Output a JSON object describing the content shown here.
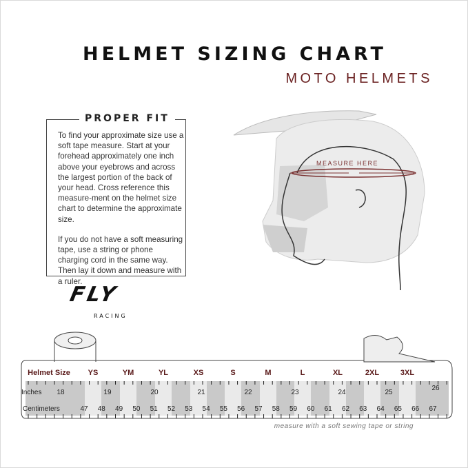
{
  "header": {
    "title": "HELMET SIZING CHART",
    "subtitle": "MOTO HELMETS"
  },
  "proper_fit": {
    "title": "PROPER FIT",
    "paragraphs": [
      "To find your approximate size use a soft tape measure. Start at your forehead approximately one inch above your eyebrows and across the largest portion of the back of your head. Cross reference this measure-ment on the helmet size chart to determine the approximate size.",
      "If you do not have a soft measuring tape, use a string or phone charging cord in the same way. Then lay it down and measure with a ruler."
    ]
  },
  "illustration": {
    "measure_label": "MEASURE HERE",
    "accent": "#7a3030"
  },
  "logo": {
    "text": "FLY",
    "sub": "RACING"
  },
  "size_chart": {
    "row_labels": {
      "size": "Helmet Size",
      "inches": "Inches",
      "cm": "Centimeters"
    },
    "sizes": [
      "YS",
      "YM",
      "YL",
      "XS",
      "S",
      "M",
      "L",
      "XL",
      "2XL",
      "3XL"
    ],
    "inches": [
      "18",
      "19",
      "20",
      "21",
      "22",
      "23",
      "24",
      "25",
      "26"
    ],
    "centimeters": [
      "47",
      "48",
      "49",
      "50",
      "51",
      "52",
      "53",
      "54",
      "55",
      "56",
      "57",
      "58",
      "59",
      "60",
      "61",
      "62",
      "63",
      "64",
      "65",
      "66",
      "67"
    ],
    "note": "measure with a soft sewing tape or string"
  }
}
